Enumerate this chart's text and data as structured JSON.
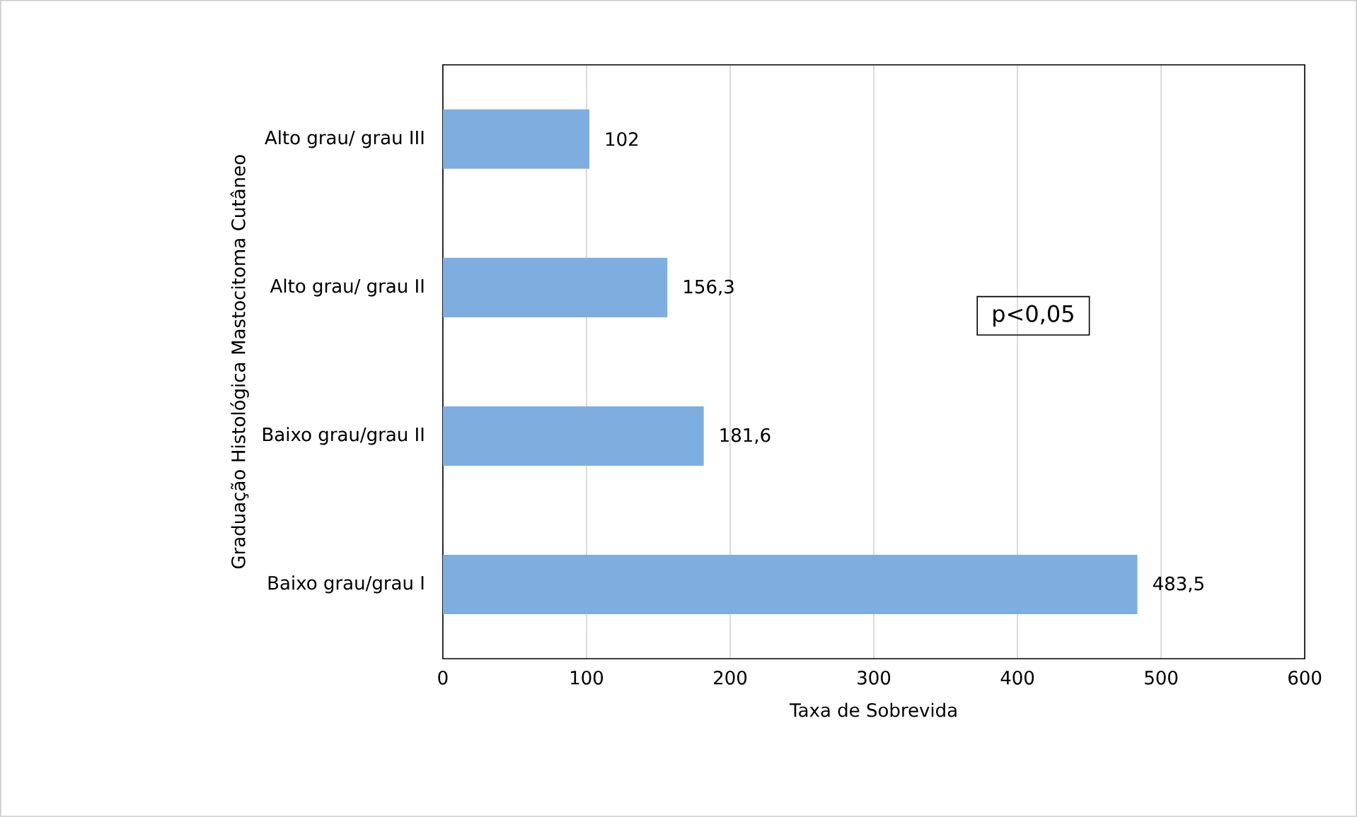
{
  "chart_data": {
    "type": "bar",
    "orientation": "horizontal",
    "xlabel": "Taxa de Sobrevida",
    "ylabel": "Graduação Histológica Mastocitoma Cutâneo",
    "categories": [
      "Alto grau/ grau III",
      "Alto grau/ grau II",
      "Baixo grau/grau II",
      "Baixo grau/grau I"
    ],
    "values": [
      102,
      156.3,
      181.6,
      483.5
    ],
    "value_labels": [
      "102",
      "156,3",
      "181,6",
      "483,5"
    ],
    "color": "#7eaedf",
    "xlim": [
      0,
      600
    ],
    "xticks": [
      0,
      100,
      200,
      300,
      400,
      500,
      600
    ],
    "grid": "x",
    "annotations": [
      "p<0,05"
    ]
  }
}
